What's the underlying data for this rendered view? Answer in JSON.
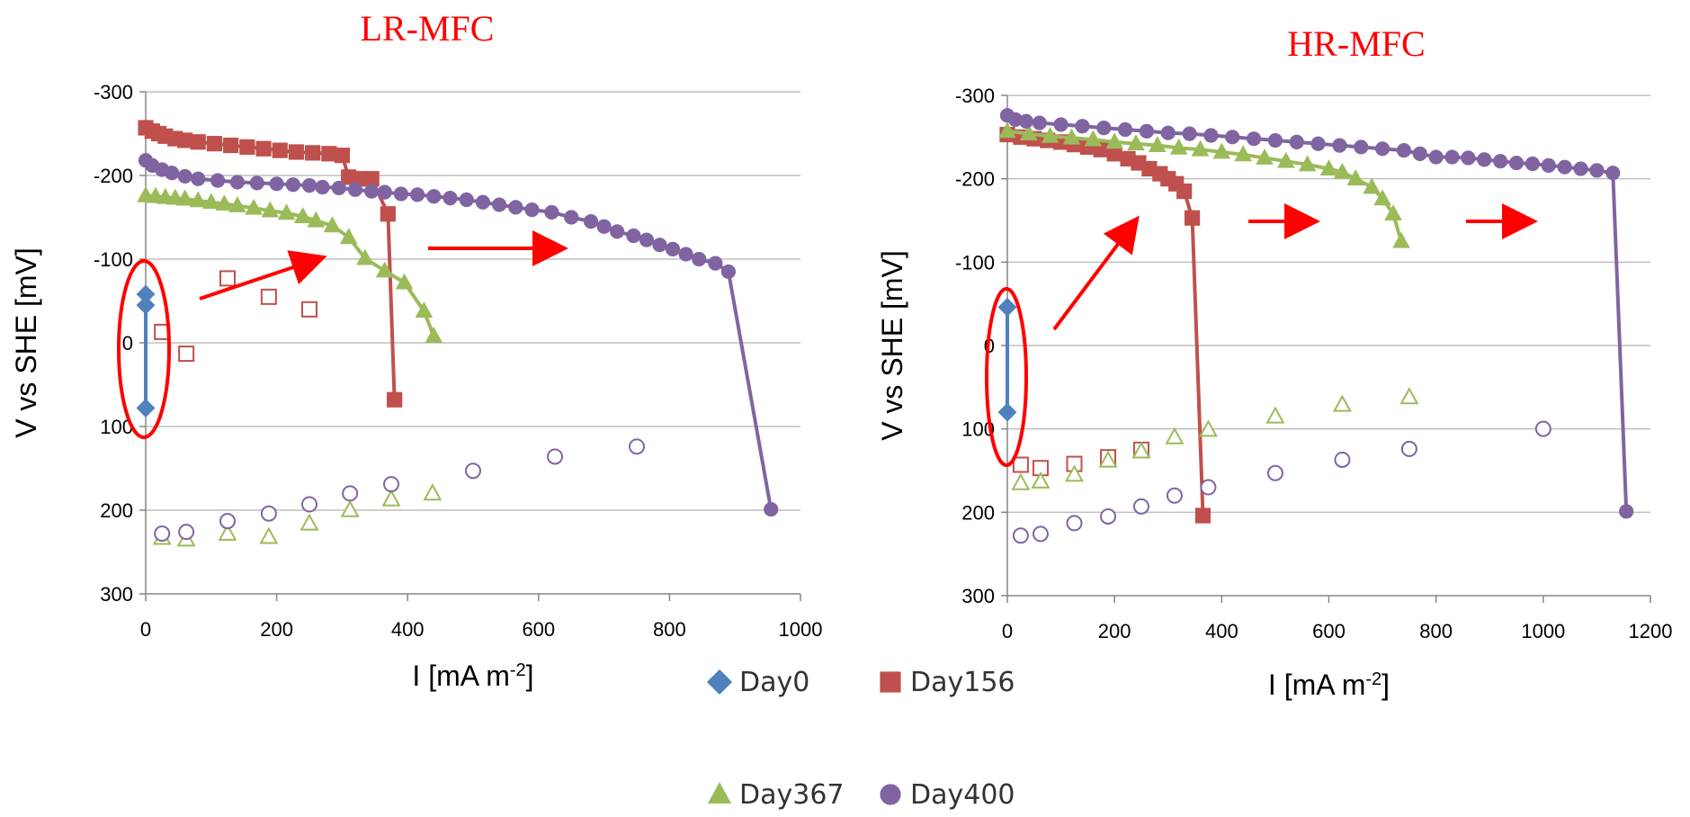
{
  "colors": {
    "Day0": "#4f81bd",
    "Day156": "#c0504d",
    "Day367": "#9bbb59",
    "Day400": "#8064a2",
    "annotation": "#ff0000",
    "grid": "#bfbfbf"
  },
  "legend": {
    "placement": "bottom-center",
    "items": [
      {
        "name": "Day0",
        "marker": "diamond"
      },
      {
        "name": "Day156",
        "marker": "square"
      },
      {
        "name": "Day367",
        "marker": "triangle"
      },
      {
        "name": "Day400",
        "marker": "circle"
      }
    ]
  },
  "chart_data": [
    {
      "type": "scatter",
      "title": "LR-MFC",
      "xlabel": "I [mA m",
      "xlabel_sup": "-2",
      "xlabel_end": "]",
      "ylabel": "V vs SHE  [mV]",
      "xlim": [
        0,
        1000
      ],
      "ylim": [
        -300,
        300
      ],
      "y_reversed": true,
      "grid": "horizontal",
      "xticks": [
        "0",
        "200",
        "400",
        "600",
        "800",
        "1000"
      ],
      "yticks": [
        "-300",
        "-200",
        "-100",
        "0",
        "100",
        "200",
        "300"
      ],
      "series": [
        {
          "name": "Day0",
          "kind": "closed",
          "marker": "diamond",
          "points": [
            [
              0,
              -58
            ],
            [
              0,
              -45
            ],
            [
              0,
              78
            ]
          ]
        },
        {
          "name": "Day156",
          "kind": "closed",
          "marker": "square",
          "points": [
            [
              0,
              -257
            ],
            [
              10,
              -253
            ],
            [
              20,
              -250
            ],
            [
              30,
              -247
            ],
            [
              45,
              -244
            ],
            [
              60,
              -242
            ],
            [
              80,
              -240
            ],
            [
              105,
              -238
            ],
            [
              130,
              -236
            ],
            [
              155,
              -234
            ],
            [
              180,
              -232
            ],
            [
              205,
              -230
            ],
            [
              230,
              -228
            ],
            [
              255,
              -227
            ],
            [
              280,
              -226
            ],
            [
              300,
              -224
            ],
            [
              310,
              -198
            ],
            [
              330,
              -196
            ],
            [
              345,
              -196
            ],
            [
              370,
              -154
            ],
            [
              380,
              68
            ]
          ]
        },
        {
          "name": "Day156",
          "kind": "open",
          "marker": "square",
          "points": [
            [
              25,
              -13
            ],
            [
              62,
              13
            ],
            [
              125,
              -77
            ],
            [
              188,
              -55
            ],
            [
              250,
              -40
            ]
          ]
        },
        {
          "name": "Day367",
          "kind": "closed",
          "marker": "triangle",
          "points": [
            [
              0,
              -176
            ],
            [
              15,
              -175
            ],
            [
              30,
              -174
            ],
            [
              45,
              -173
            ],
            [
              60,
              -172
            ],
            [
              80,
              -170
            ],
            [
              100,
              -168
            ],
            [
              120,
              -166
            ],
            [
              140,
              -164
            ],
            [
              165,
              -161
            ],
            [
              190,
              -158
            ],
            [
              215,
              -155
            ],
            [
              240,
              -151
            ],
            [
              260,
              -146
            ],
            [
              285,
              -140
            ],
            [
              310,
              -126
            ],
            [
              335,
              -101
            ],
            [
              365,
              -86
            ],
            [
              395,
              -72
            ],
            [
              425,
              -38
            ],
            [
              440,
              -8
            ]
          ]
        },
        {
          "name": "Day367",
          "kind": "open",
          "marker": "triangle",
          "points": [
            [
              25,
              233
            ],
            [
              62,
              235
            ],
            [
              125,
              228
            ],
            [
              188,
              232
            ],
            [
              250,
              216
            ],
            [
              312,
              200
            ],
            [
              375,
              187
            ],
            [
              438,
              180
            ]
          ]
        },
        {
          "name": "Day400",
          "kind": "closed",
          "marker": "circle",
          "points": [
            [
              0,
              -218
            ],
            [
              10,
              -212
            ],
            [
              25,
              -207
            ],
            [
              40,
              -203
            ],
            [
              60,
              -199
            ],
            [
              80,
              -196
            ],
            [
              110,
              -194
            ],
            [
              140,
              -192
            ],
            [
              170,
              -191
            ],
            [
              200,
              -190
            ],
            [
              225,
              -189
            ],
            [
              250,
              -188
            ],
            [
              270,
              -186
            ],
            [
              295,
              -185
            ],
            [
              320,
              -183
            ],
            [
              345,
              -181
            ],
            [
              365,
              -180
            ],
            [
              390,
              -178
            ],
            [
              415,
              -177
            ],
            [
              440,
              -175
            ],
            [
              465,
              -173
            ],
            [
              490,
              -171
            ],
            [
              515,
              -168
            ],
            [
              540,
              -165
            ],
            [
              565,
              -162
            ],
            [
              590,
              -159
            ],
            [
              620,
              -156
            ],
            [
              650,
              -150
            ],
            [
              680,
              -145
            ],
            [
              700,
              -139
            ],
            [
              720,
              -133
            ],
            [
              745,
              -128
            ],
            [
              765,
              -123
            ],
            [
              785,
              -117
            ],
            [
              805,
              -112
            ],
            [
              825,
              -106
            ],
            [
              845,
              -100
            ],
            [
              870,
              -95
            ],
            [
              890,
              -85
            ],
            [
              955,
              199
            ]
          ]
        },
        {
          "name": "Day400",
          "kind": "open",
          "marker": "circle",
          "points": [
            [
              25,
              228
            ],
            [
              62,
              226
            ],
            [
              125,
              213
            ],
            [
              188,
              204
            ],
            [
              250,
              193
            ],
            [
              312,
              180
            ],
            [
              375,
              169
            ],
            [
              500,
              153
            ],
            [
              625,
              136
            ],
            [
              750,
              124
            ]
          ]
        }
      ]
    },
    {
      "type": "scatter",
      "title": "HR-MFC",
      "xlabel": "I [mA m",
      "xlabel_sup": "-2",
      "xlabel_end": "]",
      "ylabel": "V vs SHE  [mV]",
      "xlim": [
        0,
        1200
      ],
      "ylim": [
        -300,
        300
      ],
      "y_reversed": true,
      "grid": "horizontal",
      "xticks": [
        "0",
        "200",
        "400",
        "600",
        "800",
        "1000",
        "1200"
      ],
      "yticks": [
        "-300",
        "-200",
        "-100",
        "0",
        "100",
        "200",
        "300"
      ],
      "series": [
        {
          "name": "Day0",
          "kind": "closed",
          "marker": "diamond",
          "points": [
            [
              0,
              -46
            ],
            [
              0,
              80
            ]
          ]
        },
        {
          "name": "Day156",
          "kind": "closed",
          "marker": "square",
          "points": [
            [
              0,
              -253
            ],
            [
              25,
              -250
            ],
            [
              50,
              -248
            ],
            [
              75,
              -246
            ],
            [
              100,
              -244
            ],
            [
              125,
              -241
            ],
            [
              150,
              -238
            ],
            [
              175,
              -235
            ],
            [
              200,
              -230
            ],
            [
              225,
              -224
            ],
            [
              245,
              -219
            ],
            [
              265,
              -212
            ],
            [
              285,
              -206
            ],
            [
              300,
              -200
            ],
            [
              315,
              -194
            ],
            [
              330,
              -185
            ],
            [
              345,
              -153
            ],
            [
              365,
              204
            ]
          ]
        },
        {
          "name": "Day156",
          "kind": "open",
          "marker": "square",
          "points": [
            [
              25,
              143
            ],
            [
              62,
              147
            ],
            [
              125,
              142
            ],
            [
              188,
              134
            ],
            [
              250,
              125
            ]
          ]
        },
        {
          "name": "Day367",
          "kind": "closed",
          "marker": "triangle",
          "points": [
            [
              0,
              -257
            ],
            [
              40,
              -254
            ],
            [
              80,
              -251
            ],
            [
              120,
              -249
            ],
            [
              160,
              -247
            ],
            [
              200,
              -244
            ],
            [
              240,
              -242
            ],
            [
              280,
              -240
            ],
            [
              320,
              -237
            ],
            [
              360,
              -235
            ],
            [
              400,
              -232
            ],
            [
              440,
              -229
            ],
            [
              480,
              -225
            ],
            [
              520,
              -221
            ],
            [
              560,
              -217
            ],
            [
              600,
              -212
            ],
            [
              625,
              -208
            ],
            [
              650,
              -200
            ],
            [
              680,
              -190
            ],
            [
              700,
              -176
            ],
            [
              720,
              -158
            ],
            [
              735,
              -125
            ]
          ]
        },
        {
          "name": "Day367",
          "kind": "open",
          "marker": "triangle",
          "points": [
            [
              25,
              165
            ],
            [
              62,
              163
            ],
            [
              125,
              155
            ],
            [
              188,
              138
            ],
            [
              250,
              127
            ],
            [
              312,
              110
            ],
            [
              375,
              101
            ],
            [
              500,
              85
            ],
            [
              625,
              71
            ],
            [
              750,
              62
            ]
          ]
        },
        {
          "name": "Day400",
          "kind": "closed",
          "marker": "circle",
          "points": [
            [
              0,
              -276
            ],
            [
              15,
              -271
            ],
            [
              35,
              -269
            ],
            [
              60,
              -267
            ],
            [
              100,
              -265
            ],
            [
              140,
              -263
            ],
            [
              180,
              -261
            ],
            [
              220,
              -259
            ],
            [
              260,
              -257
            ],
            [
              300,
              -255
            ],
            [
              340,
              -254
            ],
            [
              380,
              -252
            ],
            [
              420,
              -250
            ],
            [
              460,
              -248
            ],
            [
              500,
              -246
            ],
            [
              540,
              -244
            ],
            [
              580,
              -242
            ],
            [
              620,
              -240
            ],
            [
              660,
              -238
            ],
            [
              700,
              -236
            ],
            [
              740,
              -234
            ],
            [
              770,
              -230
            ],
            [
              800,
              -226
            ],
            [
              830,
              -226
            ],
            [
              860,
              -225
            ],
            [
              890,
              -223
            ],
            [
              920,
              -221
            ],
            [
              950,
              -219
            ],
            [
              980,
              -218
            ],
            [
              1010,
              -216
            ],
            [
              1040,
              -214
            ],
            [
              1070,
              -212
            ],
            [
              1100,
              -210
            ],
            [
              1130,
              -207
            ],
            [
              1155,
              199
            ]
          ]
        },
        {
          "name": "Day400",
          "kind": "open",
          "marker": "circle",
          "points": [
            [
              25,
              228
            ],
            [
              62,
              226
            ],
            [
              125,
              213
            ],
            [
              188,
              205
            ],
            [
              250,
              193
            ],
            [
              312,
              180
            ],
            [
              375,
              170
            ],
            [
              500,
              153
            ],
            [
              625,
              137
            ],
            [
              750,
              124
            ],
            [
              1000,
              100
            ]
          ]
        }
      ]
    }
  ]
}
